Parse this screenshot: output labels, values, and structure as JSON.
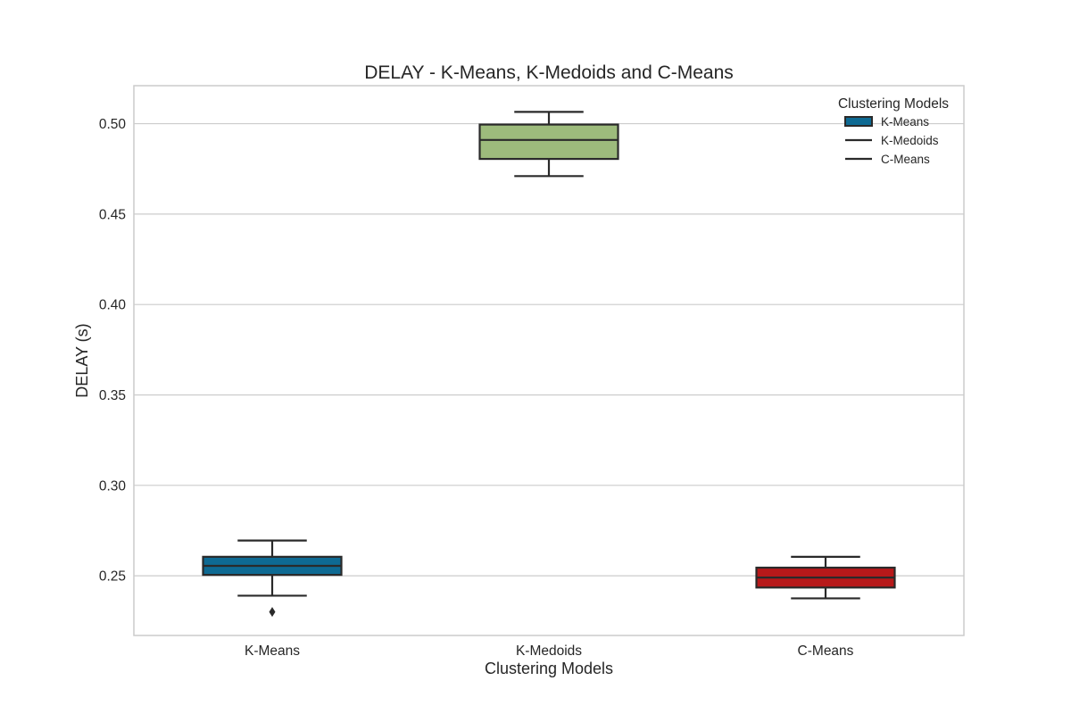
{
  "chart_data": {
    "type": "box",
    "title": "DELAY - K-Means, K-Medoids and C-Means",
    "xlabel": "Clustering Models",
    "ylabel": "DELAY (s)",
    "categories": [
      "K-Means",
      "K-Medoids",
      "C-Means"
    ],
    "ylim": [
      0.217,
      0.521
    ],
    "yticks": [
      0.25,
      0.3,
      0.35,
      0.4,
      0.45,
      0.5
    ],
    "ytick_labels": [
      "0.25",
      "0.30",
      "0.35",
      "0.40",
      "0.45",
      "0.50"
    ],
    "grid": true,
    "legend": {
      "title": "Clustering Models",
      "placement": "top-right",
      "entries": [
        "K-Means",
        "K-Medoids",
        "C-Means"
      ]
    },
    "series": [
      {
        "name": "K-Means",
        "color": "#0e6a93",
        "whisker_low": 0.239,
        "q1": 0.2505,
        "median": 0.2555,
        "q3": 0.2605,
        "whisker_high": 0.2695,
        "outliers": [
          0.23
        ]
      },
      {
        "name": "K-Medoids",
        "color": "#9dbb7c",
        "whisker_low": 0.471,
        "q1": 0.4805,
        "median": 0.491,
        "q3": 0.4995,
        "whisker_high": 0.5065
      },
      {
        "name": "C-Means",
        "color": "#b7191a",
        "whisker_low": 0.2375,
        "q1": 0.2435,
        "median": 0.249,
        "q3": 0.2545,
        "whisker_high": 0.2605
      }
    ]
  }
}
